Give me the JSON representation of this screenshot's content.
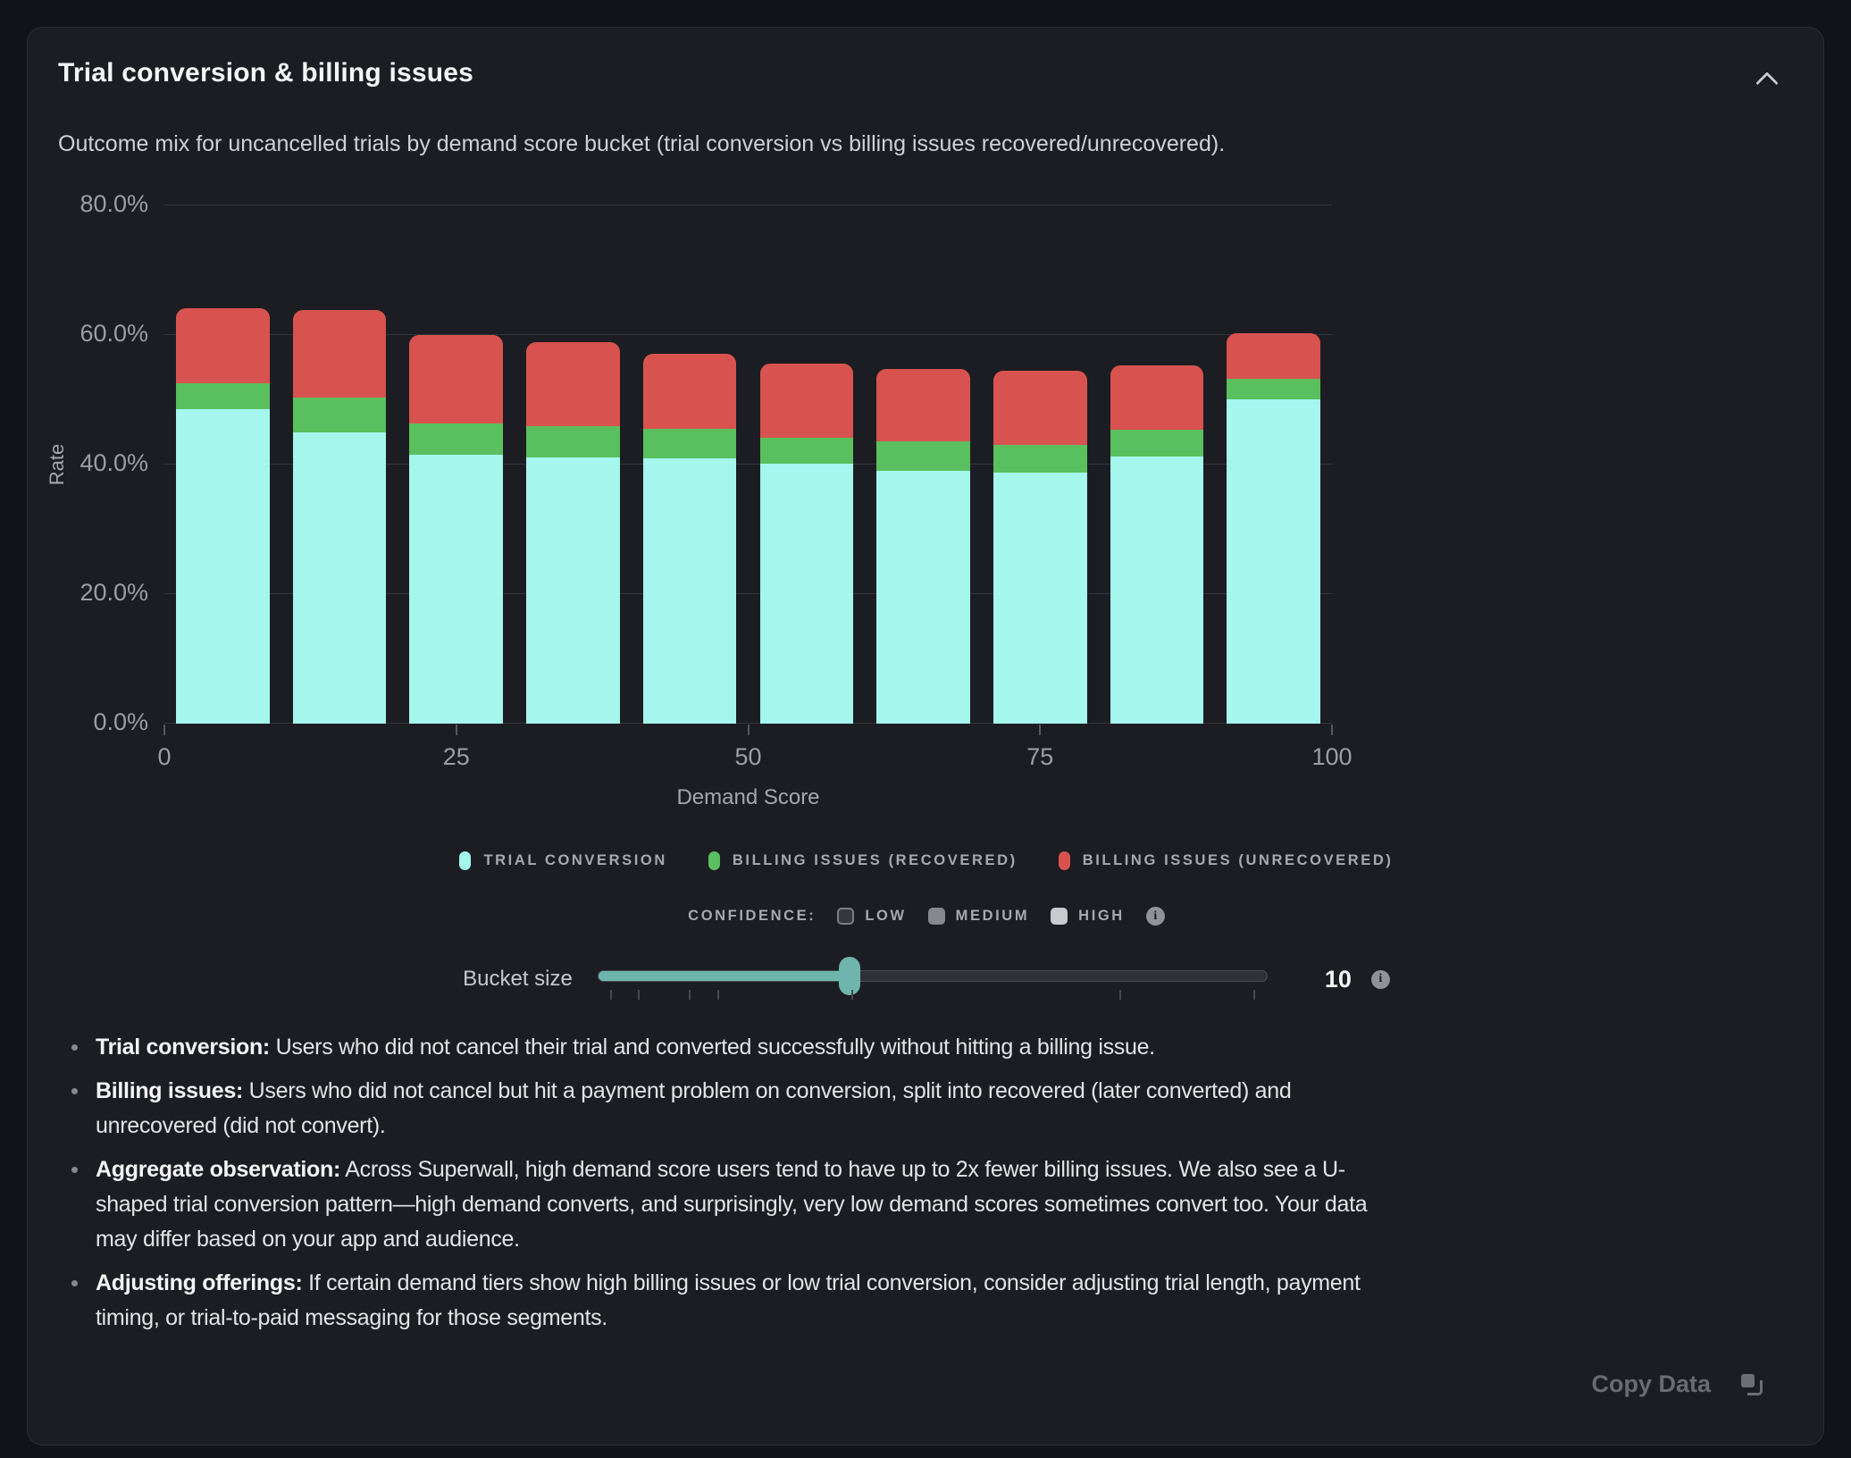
{
  "card": {
    "title": "Trial conversion & billing issues",
    "subtitle": "Outcome mix for uncancelled trials by demand score bucket (trial conversion vs billing issues recovered/unrecovered)."
  },
  "chart_data": {
    "type": "bar",
    "stacked": true,
    "xlabel": "Demand Score",
    "ylabel": "Rate",
    "ylim": [
      0,
      80
    ],
    "grid": true,
    "legend_position": "bottom",
    "y_tick_labels": [
      "0.0%",
      "20.0%",
      "40.0%",
      "60.0%",
      "80.0%"
    ],
    "x_tick_labels": [
      "0",
      "25",
      "50",
      "75",
      "100"
    ],
    "categories": [
      "0-10",
      "10-20",
      "20-30",
      "30-40",
      "40-50",
      "50-60",
      "60-70",
      "70-80",
      "80-90",
      "90-100"
    ],
    "series": [
      {
        "name": "Trial conversion",
        "color": "#a5f6ed",
        "values": [
          48.5,
          45.0,
          41.5,
          41.1,
          40.9,
          40.2,
          39.1,
          38.8,
          41.3,
          50.1
        ]
      },
      {
        "name": "Billing issues (recovered)",
        "color": "#5abf5e",
        "values": [
          4.0,
          5.4,
          4.9,
          4.9,
          4.6,
          3.9,
          4.5,
          4.3,
          4.1,
          3.2
        ]
      },
      {
        "name": "Billing issues (unrecovered)",
        "color": "#d8534f",
        "values": [
          11.7,
          13.4,
          13.6,
          12.9,
          11.6,
          11.5,
          11.2,
          11.4,
          9.9,
          7.0
        ]
      }
    ]
  },
  "legend": {
    "items": [
      {
        "label": "TRIAL CONVERSION",
        "color": "#a5f6ed"
      },
      {
        "label": "BILLING ISSUES (RECOVERED)",
        "color": "#5abf5e"
      },
      {
        "label": "BILLING ISSUES (UNRECOVERED)",
        "color": "#d8534f"
      }
    ]
  },
  "confidence": {
    "label": "CONFIDENCE:",
    "options": [
      {
        "label": "LOW",
        "fill": "#34373d",
        "border": "#7b7e83"
      },
      {
        "label": "MEDIUM",
        "fill": "#85888d",
        "border": "#85888d"
      },
      {
        "label": "HIGH",
        "fill": "#c8cacd",
        "border": "#c8cacd"
      }
    ]
  },
  "slider": {
    "label": "Bucket size",
    "value": "10",
    "fill_percent": 37.6,
    "tick_percents": [
      2,
      6.2,
      13.8,
      18,
      38,
      78,
      98
    ]
  },
  "icons": {
    "info_glyph": "i"
  },
  "notes": [
    {
      "lead": "Trial conversion:",
      "text": " Users who did not cancel their trial and converted successfully without hitting a billing issue."
    },
    {
      "lead": "Billing issues:",
      "text": " Users who did not cancel but hit a payment problem on conversion, split into recovered (later converted) and unrecovered (did not convert)."
    },
    {
      "lead": "Aggregate observation:",
      "text": " Across Superwall, high demand score users tend to have up to 2x fewer billing issues. We also see a U-shaped trial conversion pattern—high demand converts, and surprisingly, very low demand scores sometimes convert too. Your data may differ based on your app and audience."
    },
    {
      "lead": "Adjusting offerings:",
      "text": " If certain demand tiers show high billing issues or low trial conversion, consider adjusting trial length, payment timing, or trial-to-paid messaging for those segments."
    }
  ],
  "footer": {
    "copy_label": "Copy Data"
  }
}
